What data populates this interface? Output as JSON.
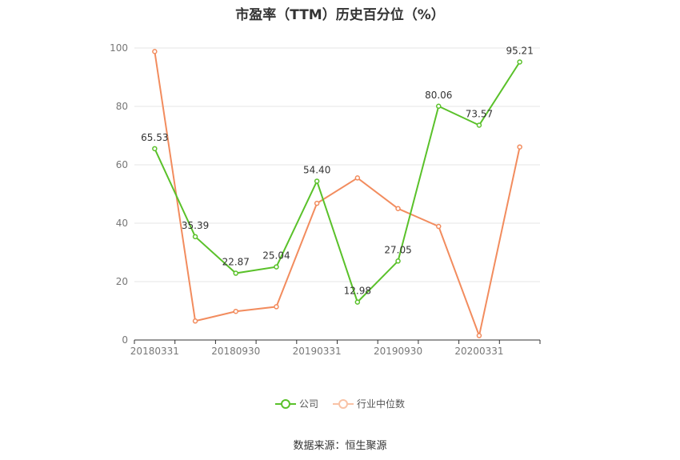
{
  "chart_data": {
    "type": "line",
    "title": "市盈率（TTM）历史百分位（%）",
    "categories": [
      "20180331",
      "20180630",
      "20180930",
      "20181231",
      "20190331",
      "20190630",
      "20190930",
      "20191231",
      "20200331",
      "20200630"
    ],
    "tick_labels": [
      "20180331",
      "20180930",
      "20190331",
      "20190930",
      "20200331"
    ],
    "ylim": [
      0,
      100
    ],
    "yticks": [
      0,
      20,
      40,
      60,
      80,
      100
    ],
    "series": [
      {
        "name": "公司",
        "color": "#5ac12a",
        "show_labels": true,
        "values": [
          65.53,
          35.39,
          22.87,
          25.04,
          54.4,
          12.98,
          27.05,
          80.06,
          73.57,
          95.21
        ],
        "labels": [
          "65.53",
          "35.39",
          "22.87",
          "25.04",
          "54.40",
          "12.98",
          "27.05",
          "80.06",
          "73.57",
          "95.21"
        ]
      },
      {
        "name": "行业中位数",
        "color": "#f28c5e",
        "show_labels": false,
        "values": [
          98.8,
          6.5,
          9.8,
          11.4,
          46.8,
          55.5,
          45.0,
          38.9,
          1.5,
          66.1
        ]
      }
    ],
    "grid": true,
    "legend_position": "bottom"
  },
  "source": "数据来源：恒生聚源"
}
